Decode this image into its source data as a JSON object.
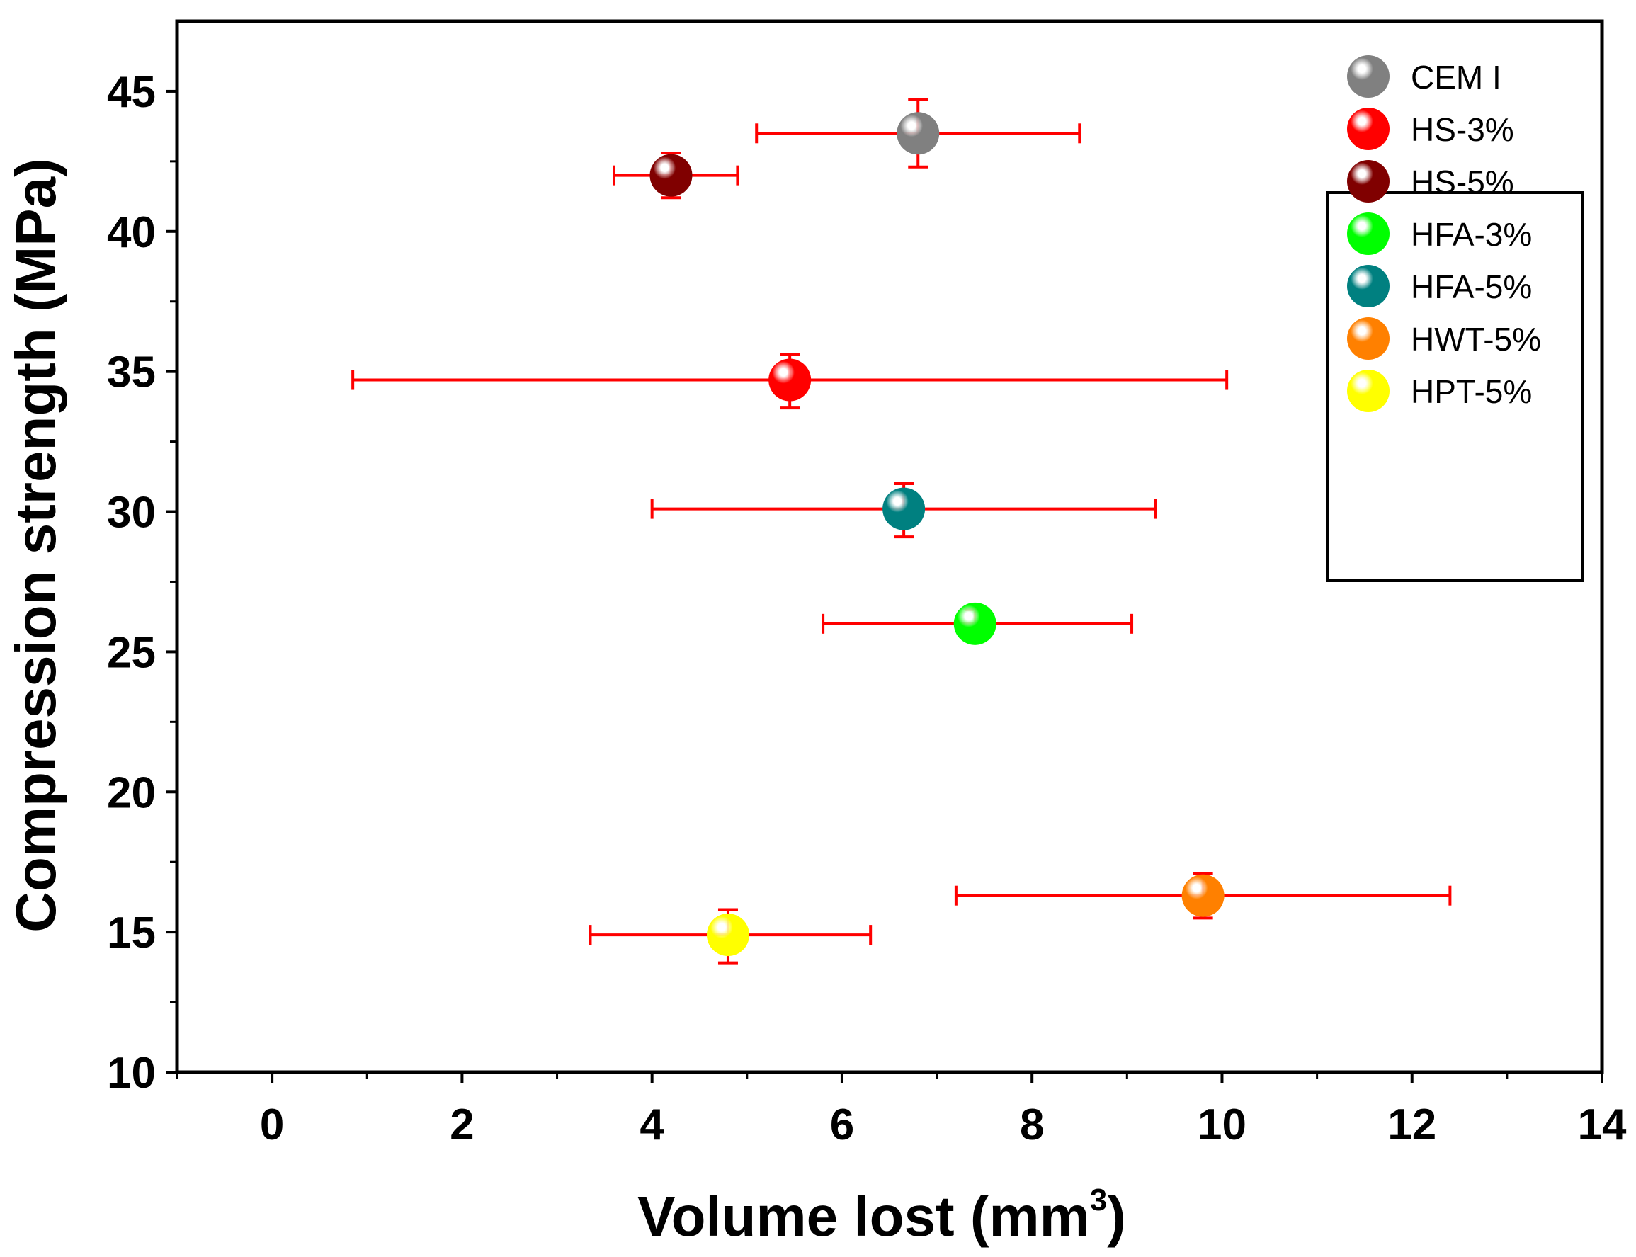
{
  "chart_data": {
    "type": "scatter",
    "title": "",
    "xlabel": "Volume lost (mm3)",
    "xlabel_main": "Volume lost (mm",
    "xlabel_sup": "3",
    "xlabel_close": ")",
    "ylabel": "Compression strength (MPa)",
    "xlim": [
      -1,
      14
    ],
    "ylim": [
      10,
      47.5
    ],
    "xticks": [
      0,
      2,
      4,
      6,
      8,
      10,
      12,
      14
    ],
    "yticks": [
      10,
      15,
      20,
      25,
      30,
      35,
      40,
      45
    ],
    "legend_position": "top-right",
    "series": [
      {
        "name": "CEM I",
        "color": "#808080",
        "x": 6.8,
        "y": 43.5,
        "x_err": [
          5.1,
          8.5
        ],
        "y_err": [
          42.3,
          44.7
        ]
      },
      {
        "name": "HS-3%",
        "color": "#ff0000",
        "x": 5.45,
        "y": 34.7,
        "x_err": [
          0.85,
          10.05
        ],
        "y_err": [
          33.7,
          35.6
        ]
      },
      {
        "name": "HS-5%",
        "color": "#800000",
        "x": 4.2,
        "y": 42.0,
        "x_err": [
          3.6,
          4.9
        ],
        "y_err": [
          41.2,
          42.8
        ]
      },
      {
        "name": "HFA-3%",
        "color": "#00ff00",
        "x": 7.4,
        "y": 26.0,
        "x_err": [
          5.8,
          9.05
        ],
        "y_err": [
          25.4,
          26.5
        ]
      },
      {
        "name": "HFA-5%",
        "color": "#008080",
        "x": 6.65,
        "y": 30.1,
        "x_err": [
          4.0,
          9.3
        ],
        "y_err": [
          29.1,
          31.0
        ]
      },
      {
        "name": "HWT-5%",
        "color": "#ff8000",
        "x": 9.8,
        "y": 16.3,
        "x_err": [
          7.2,
          12.4
        ],
        "y_err": [
          15.5,
          17.1
        ]
      },
      {
        "name": "HPT-5%",
        "color": "#ffff00",
        "x": 4.8,
        "y": 14.9,
        "x_err": [
          3.35,
          6.3
        ],
        "y_err": [
          13.9,
          15.8
        ]
      }
    ],
    "error_bar_color": "#ff0000"
  }
}
